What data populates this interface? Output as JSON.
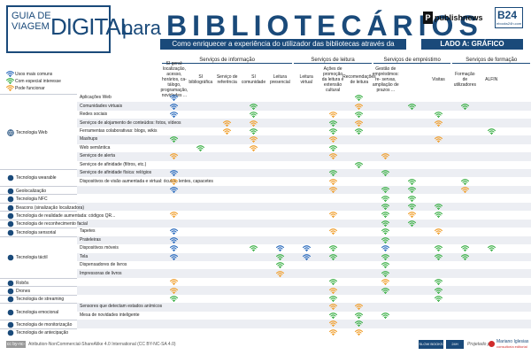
{
  "header": {
    "logo": {
      "line1": "GUIA DE",
      "line2": "VIAGEM",
      "line3": "DIGITAL"
    },
    "para": "para",
    "title": "BIBLIOTECÁRIOS",
    "subtitle": "Como enriquecer a experiência do utilizador das bibliotecas através da tecnologia",
    "side_label": "LADO A: GRÁFICO",
    "publisher": "publishnews",
    "b24": {
      "mark": "B24",
      "sub": "ebooks24h.com"
    }
  },
  "legend": [
    {
      "label": "Usos mais comuns",
      "color": "#2f6ebe"
    },
    {
      "label": "Com especial interesse",
      "color": "#3fb14a"
    },
    {
      "label": "Pode funcionar",
      "color": "#f0a030"
    }
  ],
  "groups": [
    {
      "label": "Serviços de informação",
      "span": 5
    },
    {
      "label": "Serviços de leitura",
      "span": 3
    },
    {
      "label": "Serviços de empréstimo",
      "span": 3
    },
    {
      "label": "Serviços de formação",
      "span": 3
    }
  ],
  "columns": [
    "SI geral: localização, acesso, horários, ca- tálogo, programação, novidades ...",
    "SI bibliográfica",
    "Serviço de referência",
    "SI comunidade",
    "Leitura presencial",
    "Leitura virtual",
    "Ações de promoção da leitura e extensão cultural",
    "Recomendações de leitura",
    "Gestão de empréstimos: re- servas, ampliação de prazos ...",
    "",
    "Visitas",
    "Formação de utilizadores",
    "ALFIN",
    ""
  ],
  "categories": [
    {
      "label": "Tecnologia Web",
      "icon": "globe-icon",
      "rows": [
        0,
        8
      ]
    },
    {
      "label": "Tecnologia wearable",
      "icon": "watch-icon",
      "rows": [
        9,
        10
      ]
    },
    {
      "label": "Geolocalização",
      "icon": "pin-icon",
      "rows": [
        11,
        11
      ]
    },
    {
      "label": "Tecnologia NFC",
      "icon": "nfc-icon",
      "rows": [
        12,
        12
      ]
    },
    {
      "label": "Beacons (sinalização localizadora)",
      "icon": "beacon-icon",
      "rows": [
        13,
        13
      ]
    },
    {
      "label": "Tecnologia de realidade aumentada: códigos QR...",
      "icon": "qr-icon",
      "rows": [
        14,
        14
      ]
    },
    {
      "label": "Tecnologia de reconhecimento facial",
      "icon": "face-icon",
      "rows": [
        15,
        15
      ]
    },
    {
      "label": "Tecnologia sensorial",
      "icon": "sensor-icon",
      "rows": [
        16,
        16
      ]
    },
    {
      "label": "Tecnologia táctil",
      "icon": "touch-icon",
      "rows": [
        17,
        21
      ]
    },
    {
      "label": "Robôs",
      "icon": "robot-icon",
      "rows": [
        22,
        22
      ]
    },
    {
      "label": "Drones",
      "icon": "drone-icon",
      "rows": [
        23,
        23
      ]
    },
    {
      "label": "Tecnologia de streaming",
      "icon": "stream-icon",
      "rows": [
        24,
        24
      ]
    },
    {
      "label": "Tecnologia emocional",
      "icon": "heart-icon",
      "rows": [
        25,
        26
      ]
    },
    {
      "label": "Tecnologia de monitorização",
      "icon": "eye-icon",
      "rows": [
        27,
        27
      ]
    },
    {
      "label": "Tecnologia de antecipação",
      "icon": "clock-icon",
      "rows": [
        28,
        28
      ]
    }
  ],
  "rows": [
    {
      "label": "Aplicações Web",
      "cells": {
        "0": "b",
        "7": "g"
      }
    },
    {
      "label": "Comunidades virtuais",
      "cells": {
        "0": "b",
        "3": "g",
        "7": "o",
        "9": "g",
        "11": "g"
      }
    },
    {
      "label": "Redes sociais",
      "cells": {
        "0": "b",
        "3": "g",
        "6": "o",
        "7": "g",
        "10": "g"
      }
    },
    {
      "label": "Serviços de alojamento de conteúdos: fotos, vídeos",
      "cells": {
        "2": "o",
        "3": "o",
        "6": "g",
        "7": "o",
        "10": "o"
      }
    },
    {
      "label": "Ferramentas colaborativas: blogs, wikis",
      "cells": {
        "2": "o",
        "3": "g",
        "6": "g",
        "7": "g",
        "12": "g"
      }
    },
    {
      "label": "Mashups",
      "cells": {
        "0": "g",
        "3": "o",
        "6": "o",
        "10": "o"
      }
    },
    {
      "label": "Web semântica",
      "cells": {
        "1": "g",
        "3": "o",
        "6": "g"
      }
    },
    {
      "label": "Serviços de alerta",
      "cells": {
        "0": "o",
        "6": "o",
        "8": "o"
      }
    },
    {
      "label": "Serviços de afinidade (filtros, etc.)",
      "cells": {
        "7": "g"
      }
    },
    {
      "label": "Serviços de afinidade física: relógios",
      "cells": {
        "0": "b",
        "6": "g",
        "8": "g"
      }
    },
    {
      "label": "Dispositivos de visão aumentada e virtual: óculos, lentes, capacetes",
      "cells": {
        "0": "o",
        "6": "o",
        "9": "g",
        "11": "g"
      }
    },
    {
      "label": "",
      "cells": {
        "0": "b",
        "6": "o",
        "8": "g",
        "9": "g",
        "11": "o"
      }
    },
    {
      "label": "",
      "cells": {
        "8": "g",
        "9": "g"
      }
    },
    {
      "label": "",
      "cells": {
        "8": "g",
        "9": "g",
        "10": "g"
      }
    },
    {
      "label": "",
      "cells": {
        "0": "o",
        "6": "o",
        "8": "g",
        "9": "o",
        "10": "g"
      }
    },
    {
      "label": "",
      "cells": {
        "8": "g",
        "9": "g"
      }
    },
    {
      "label": "Tapetes",
      "cells": {
        "0": "b",
        "6": "o",
        "8": "g",
        "10": "o"
      }
    },
    {
      "label": "Prateleiras",
      "cells": {
        "0": "b",
        "8": "g"
      }
    },
    {
      "label": "Dispositivos móveis",
      "cells": {
        "0": "b",
        "3": "g",
        "4": "b",
        "5": "b",
        "6": "g",
        "8": "b",
        "10": "g",
        "11": "g",
        "12": "g"
      }
    },
    {
      "label": "Tela",
      "cells": {
        "0": "b",
        "4": "g",
        "5": "b",
        "6": "g",
        "8": "g",
        "10": "g",
        "11": "g"
      }
    },
    {
      "label": "Dispensadores de livros",
      "cells": {
        "4": "g",
        "8": "g"
      }
    },
    {
      "label": "Impressoras de livros",
      "cells": {
        "4": "o",
        "8": "g"
      }
    },
    {
      "label": "",
      "cells": {
        "0": "o",
        "6": "g",
        "8": "o",
        "10": "g"
      }
    },
    {
      "label": "",
      "cells": {
        "0": "o",
        "6": "o",
        "8": "g",
        "10": "g"
      }
    },
    {
      "label": "",
      "cells": {
        "0": "g",
        "6": "g",
        "10": "g"
      }
    },
    {
      "label": "Sensores que detectam estados anímicos",
      "cells": {
        "6": "o",
        "7": "o"
      }
    },
    {
      "label": "Mesa de novidades inteligente",
      "cells": {
        "6": "g",
        "7": "g",
        "8": "g"
      }
    },
    {
      "label": "",
      "cells": {
        "6": "o",
        "7": "g"
      }
    },
    {
      "label": "",
      "cells": {
        "6": "o",
        "7": "o"
      }
    }
  ],
  "colors": {
    "blue": "#2f6ebe",
    "green": "#3fb14a",
    "orange": "#f0a030",
    "navy": "#1a4a7a"
  },
  "footer": {
    "cc": "cc by-nc-sa",
    "license": "Atribution-NonCommercial-ShareAlike 4.0 International (CC BY-NC-SA 4.0)",
    "logo1": "SLOW BOOKS",
    "logo2": "24H",
    "projected": "Projetado por:",
    "logo3a": "Mariano Iglesias",
    "logo3b": "consultoría editorial"
  }
}
